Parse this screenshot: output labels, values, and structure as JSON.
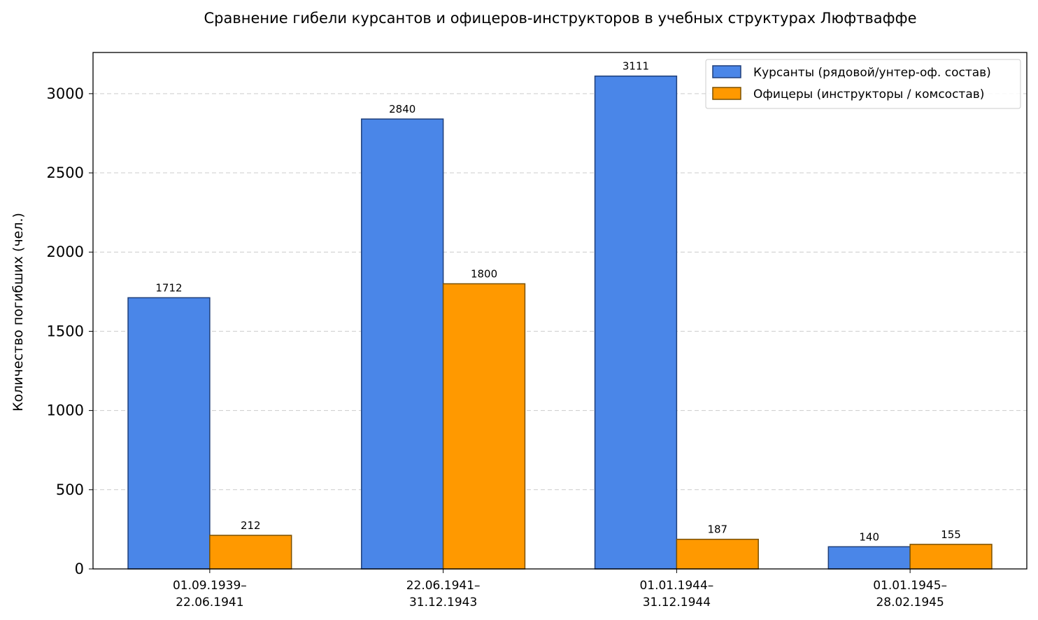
{
  "chart_data": {
    "type": "bar",
    "title": "Сравнение гибели курсантов и офицеров-инструкторов в учебных структурах Люфтваффе",
    "xlabel": "",
    "ylabel": "Количество погибших (чел.)",
    "ylim": [
      0,
      3260
    ],
    "yticks": [
      0,
      500,
      1000,
      1500,
      2000,
      2500,
      3000
    ],
    "grid": true,
    "legend_position": "top-right",
    "categories": [
      [
        "01.09.1939–",
        "22.06.1941"
      ],
      [
        "22.06.1941–",
        "31.12.1943"
      ],
      [
        "01.01.1944–",
        "31.12.1944"
      ],
      [
        "01.01.1945–",
        "28.02.1945"
      ]
    ],
    "series": [
      {
        "name": "Курсанты (рядовой/унтер-оф. состав)",
        "values": [
          1712,
          2840,
          3111,
          140
        ],
        "color": "#4a86e8",
        "edge": "#1f3f7a"
      },
      {
        "name": "Офицеры (инструкторы / комсостав)",
        "values": [
          212,
          1800,
          187,
          155
        ],
        "color": "#ff9900",
        "edge": "#7a5000"
      }
    ]
  }
}
